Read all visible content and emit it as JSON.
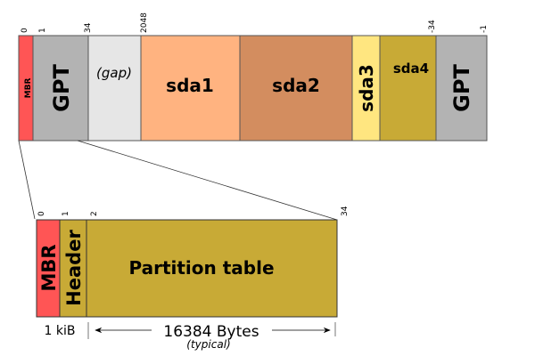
{
  "disk": {
    "offsets": {
      "o0": "0",
      "o1": "1",
      "o34": "34",
      "o2048": "2048",
      "oneg34": "-34",
      "oneg1": "-1"
    },
    "segments": {
      "mbr": {
        "label": "MBR",
        "color": "#ff5555"
      },
      "gpt_primary": {
        "label": "GPT",
        "color": "#b3b3b3"
      },
      "gap": {
        "label": "(gap)",
        "color": "#e6e6e6"
      },
      "sda1": {
        "label": "sda1",
        "color": "#ffb380"
      },
      "sda2": {
        "label": "sda2",
        "color": "#d38d5f"
      },
      "sda3": {
        "label": "sda3",
        "color": "#ffe680"
      },
      "sda4": {
        "label": "sda4",
        "color": "#c8aa36"
      },
      "gpt_backup": {
        "label": "GPT",
        "color": "#b3b3b3"
      }
    }
  },
  "detail": {
    "offsets": {
      "o0": "0",
      "o1": "1",
      "o2": "2",
      "o34": "34"
    },
    "segments": {
      "mbr": {
        "label": "MBR",
        "color": "#ff5555"
      },
      "header": {
        "label": "Header",
        "color": "#c8aa36"
      },
      "table": {
        "label": "Partition table",
        "color": "#c8aa36"
      }
    },
    "mbr_size": "1 kiB",
    "table_size": "16384 Bytes",
    "table_size_note": "(typical)"
  }
}
